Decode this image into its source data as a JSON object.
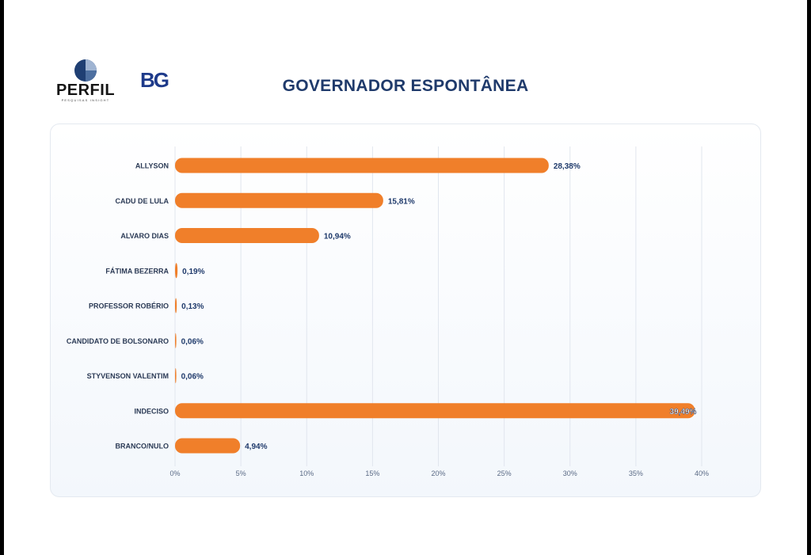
{
  "header": {
    "logo_perfil": "PERFIL",
    "logo_perfil_tagline": "PESQUISAS INSIGHT",
    "logo_bg": "BG"
  },
  "chart_data": {
    "type": "bar",
    "orientation": "horizontal",
    "title": "GOVERNADOR ESPONTÂNEA",
    "categories": [
      "ALLYSON",
      "CADU DE LULA",
      "ALVARO DIAS",
      "FÁTIMA BEZERRA",
      "PROFESSOR ROBÉRIO",
      "CANDIDATO DE BOLSONARO",
      "STYVENSON VALENTIM",
      "INDECISO",
      "BRANCO/NULO"
    ],
    "values": [
      28.38,
      15.81,
      10.94,
      0.19,
      0.13,
      0.06,
      0.06,
      39.49,
      4.94
    ],
    "value_labels": [
      "28,38%",
      "15,81%",
      "10,94%",
      "0,19%",
      "0,13%",
      "0,06%",
      "0,06%",
      "39,49%",
      "4,94%"
    ],
    "xlim": [
      0,
      40
    ],
    "xticks": [
      0,
      5,
      10,
      15,
      20,
      25,
      30,
      35,
      40
    ],
    "xtick_labels": [
      "0%",
      "5%",
      "10%",
      "15%",
      "20%",
      "25%",
      "30%",
      "35%",
      "40%"
    ],
    "xlabel": "",
    "ylabel": "",
    "grid": "vertical",
    "legend": "none",
    "colors": {
      "bar": "#f07f2a",
      "value_label": "#1f3a6b",
      "category_label": "#2b3a55",
      "tick_label": "#5a6a85",
      "grid": "#e1e6ee"
    }
  }
}
